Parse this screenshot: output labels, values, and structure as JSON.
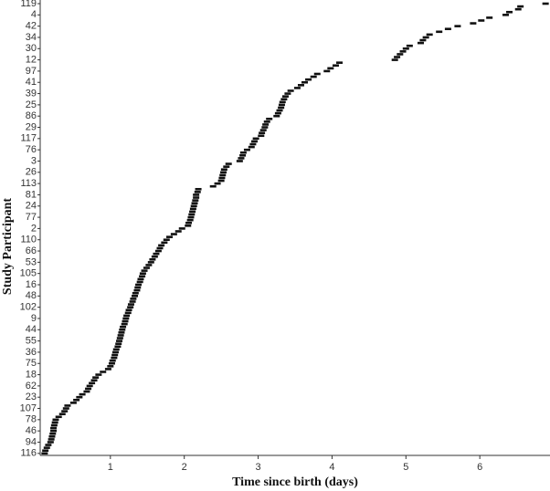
{
  "chart_data": {
    "type": "dot",
    "xlabel": "Time since birth (days)",
    "ylabel": "Study Participant",
    "color": "#111111",
    "xlim": [
      0.05,
      6.95
    ],
    "xticks": [
      1,
      2,
      3,
      4,
      5,
      6
    ],
    "categories": [
      "119",
      null,
      null,
      null,
      "4",
      null,
      null,
      null,
      "42",
      null,
      null,
      null,
      "34",
      null,
      null,
      null,
      "30",
      null,
      null,
      null,
      "12",
      null,
      null,
      null,
      "97",
      null,
      null,
      null,
      "41",
      null,
      null,
      null,
      "39",
      null,
      null,
      null,
      "25",
      null,
      null,
      null,
      "86",
      null,
      null,
      null,
      "29",
      null,
      null,
      null,
      "117",
      null,
      null,
      null,
      "76",
      null,
      null,
      null,
      "3",
      null,
      null,
      null,
      "26",
      null,
      null,
      null,
      "113",
      null,
      null,
      null,
      "81",
      null,
      null,
      null,
      "24",
      null,
      null,
      null,
      "77",
      null,
      null,
      null,
      "2",
      null,
      null,
      null,
      "110",
      null,
      null,
      null,
      "66",
      null,
      null,
      null,
      "53",
      null,
      null,
      null,
      "105",
      null,
      null,
      null,
      "16",
      null,
      null,
      null,
      "48",
      null,
      null,
      null,
      "102",
      null,
      null,
      null,
      "9",
      null,
      null,
      null,
      "44",
      null,
      null,
      null,
      "55",
      null,
      null,
      null,
      "36",
      null,
      null,
      null,
      "75",
      null,
      null,
      null,
      "18",
      null,
      null,
      null,
      "62",
      null,
      null,
      null,
      "23",
      null,
      null,
      null,
      "107",
      null,
      null,
      null,
      "78",
      null,
      null,
      null,
      "46",
      null,
      null,
      null,
      "94",
      null,
      null,
      null,
      "116"
    ],
    "values": [
      6.89,
      6.55,
      6.52,
      6.4,
      6.35,
      6.13,
      6.02,
      5.91,
      5.7,
      5.57,
      5.45,
      5.32,
      5.27,
      5.23,
      5.2,
      5.05,
      5.0,
      4.96,
      4.92,
      4.88,
      4.85,
      4.1,
      4.05,
      3.98,
      3.93,
      3.8,
      3.75,
      3.68,
      3.63,
      3.58,
      3.53,
      3.44,
      3.4,
      3.37,
      3.35,
      3.33,
      3.32,
      3.31,
      3.29,
      3.27,
      3.25,
      3.15,
      3.12,
      3.1,
      3.09,
      3.07,
      3.05,
      3.04,
      2.97,
      2.95,
      2.93,
      2.91,
      2.85,
      2.8,
      2.79,
      2.77,
      2.75,
      2.6,
      2.57,
      2.54,
      2.53,
      2.52,
      2.51,
      2.5,
      2.45,
      2.39,
      2.19,
      2.18,
      2.16,
      2.16,
      2.15,
      2.14,
      2.13,
      2.12,
      2.11,
      2.1,
      2.09,
      2.08,
      2.06,
      2.05,
      1.97,
      1.92,
      1.86,
      1.8,
      1.76,
      1.73,
      1.69,
      1.67,
      1.65,
      1.62,
      1.6,
      1.57,
      1.55,
      1.52,
      1.49,
      1.46,
      1.44,
      1.43,
      1.41,
      1.4,
      1.38,
      1.37,
      1.36,
      1.34,
      1.33,
      1.31,
      1.3,
      1.28,
      1.27,
      1.25,
      1.24,
      1.22,
      1.21,
      1.2,
      1.19,
      1.17,
      1.16,
      1.15,
      1.14,
      1.13,
      1.12,
      1.11,
      1.1,
      1.08,
      1.07,
      1.06,
      1.05,
      1.03,
      1.02,
      1.0,
      0.97,
      0.9,
      0.84,
      0.8,
      0.78,
      0.75,
      0.72,
      0.7,
      0.68,
      0.62,
      0.58,
      0.54,
      0.5,
      0.42,
      0.4,
      0.38,
      0.35,
      0.3,
      0.26,
      0.25,
      0.24,
      0.23,
      0.23,
      0.22,
      0.21,
      0.2,
      0.19,
      0.16,
      0.14,
      0.12,
      0.11
    ]
  }
}
